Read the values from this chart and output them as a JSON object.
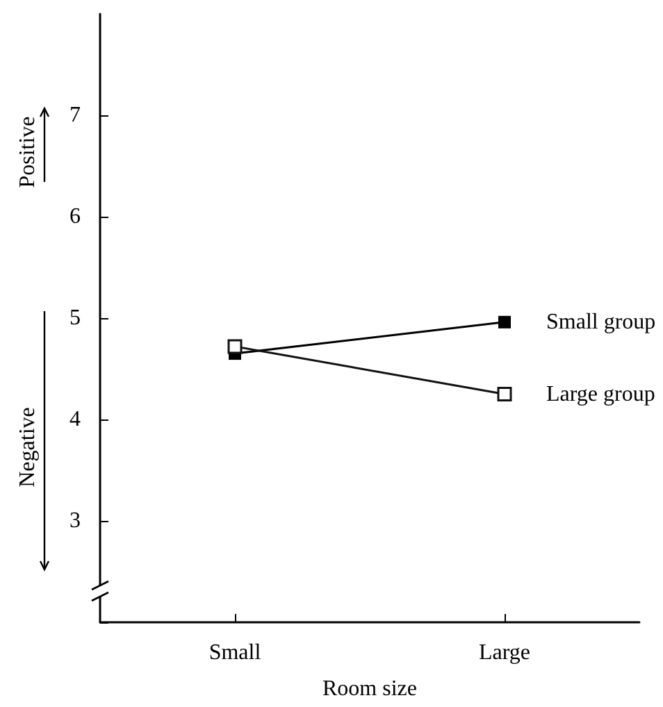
{
  "chart_data": {
    "type": "line",
    "xlabel": "Room size",
    "categories": [
      "Small",
      "Large"
    ],
    "series": [
      {
        "name": "Small group",
        "color": "#000000",
        "values": [
          4.65,
          4.96
        ]
      },
      {
        "name": "Large group",
        "color": "#111111",
        "values": [
          4.72,
          4.25
        ]
      }
    ],
    "ylim": [
      2,
      8
    ],
    "yticks": [
      {
        "value": 2,
        "label": null
      },
      3,
      4,
      5,
      6,
      7
    ],
    "annotations": [
      "Positive",
      "Negative"
    ],
    "marker": "square",
    "line_style": "solid",
    "grid": false,
    "legend": "right"
  }
}
